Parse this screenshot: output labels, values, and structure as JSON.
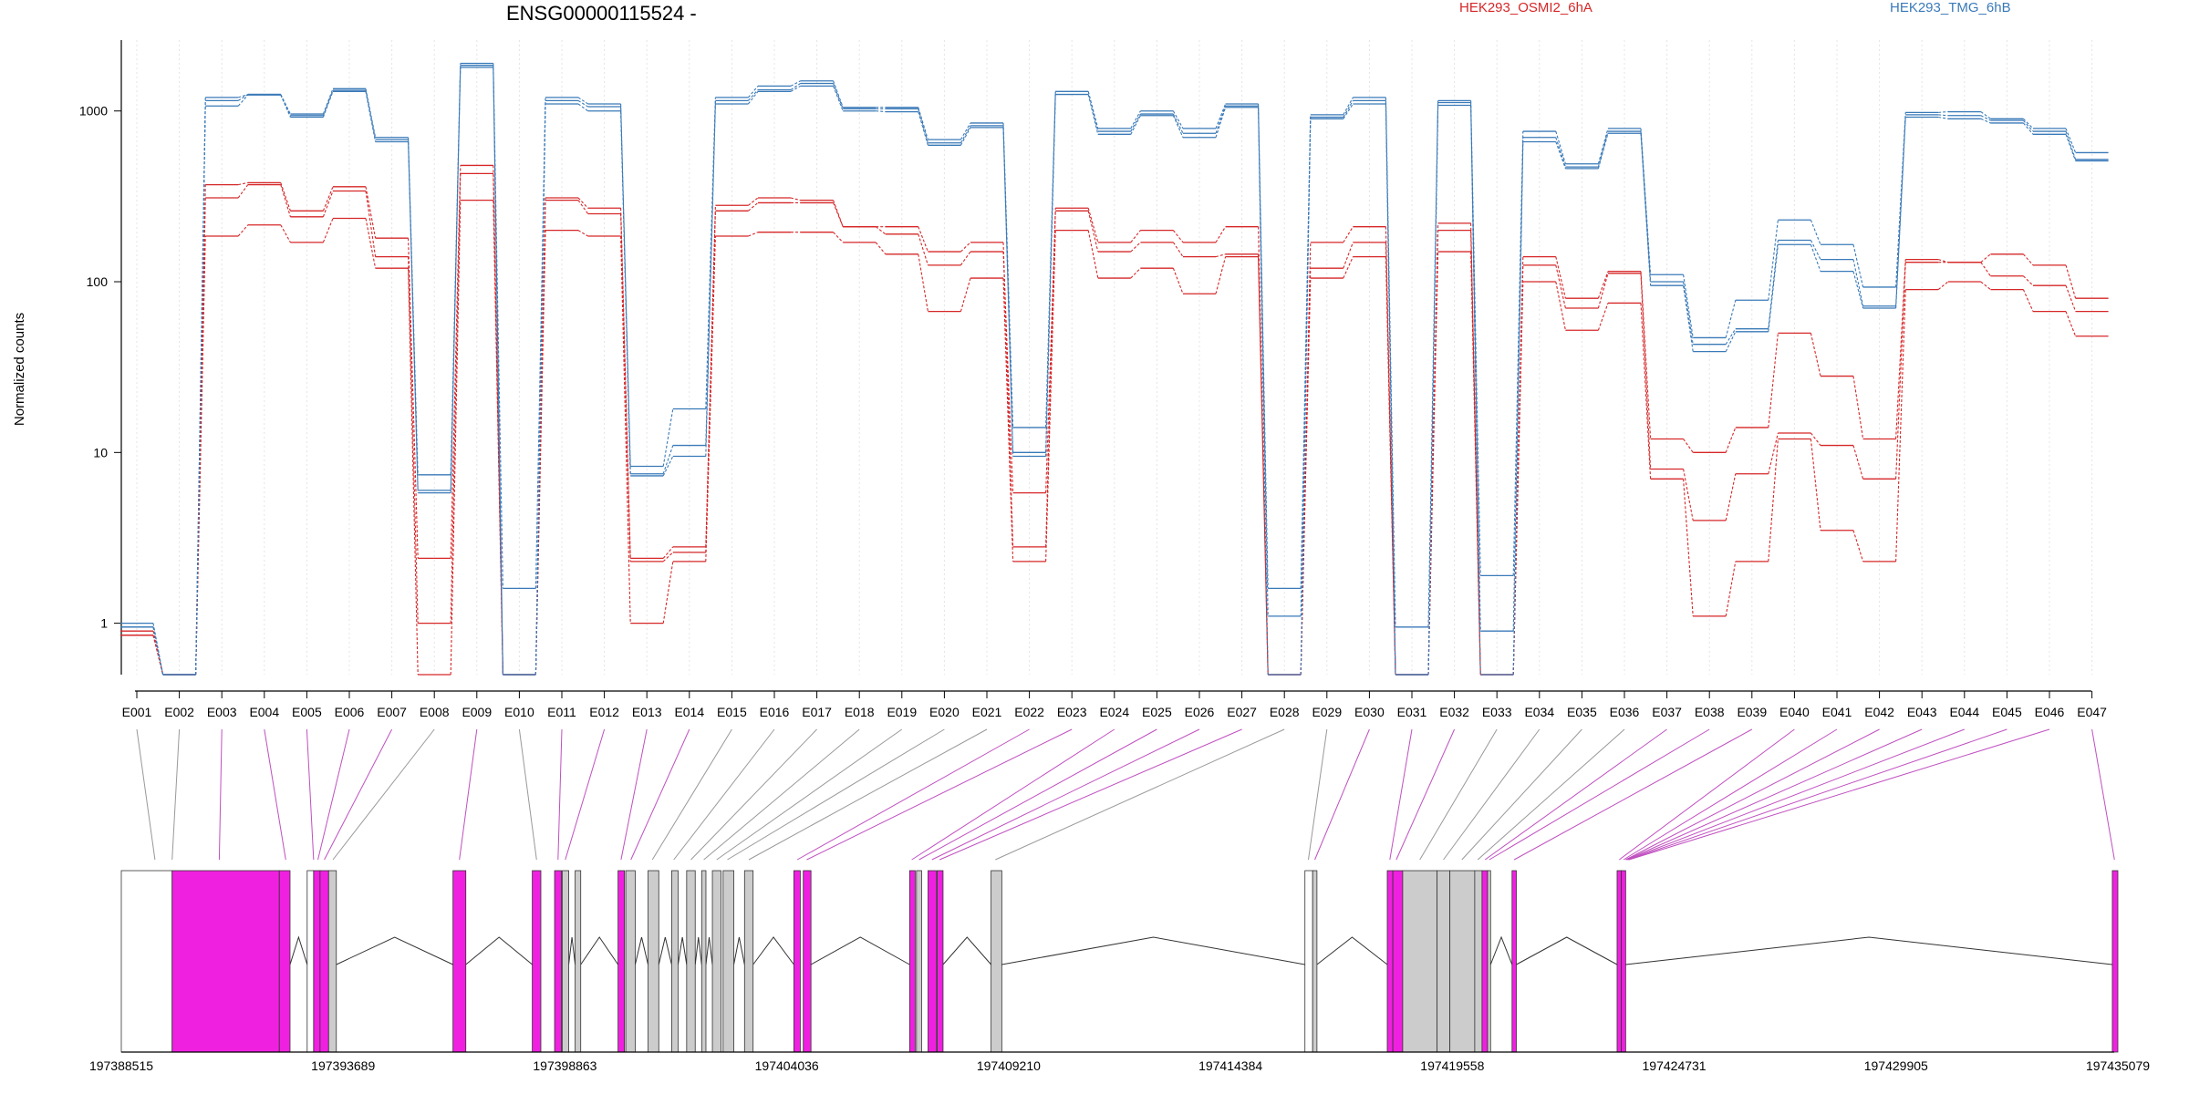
{
  "chart_data": {
    "type": "line",
    "title": "ENSG00000115524 -",
    "ylabel": "Normalized counts",
    "yscale": "log",
    "ylim": [
      0.5,
      2600
    ],
    "yticks": [
      1,
      10,
      100,
      1000
    ],
    "ytick_labels": [
      "1",
      "10",
      "100",
      "1000"
    ],
    "grid": "vertical dotted per exon",
    "legend": [
      {
        "name": "HEK293_OSMI2_6hA",
        "color": "#d62728",
        "position": "top-center-right"
      },
      {
        "name": "HEK293_TMG_6hB",
        "color": "#3a7ab8",
        "position": "top-right"
      }
    ],
    "categories": [
      "E001",
      "E002",
      "E003",
      "E004",
      "E005",
      "E006",
      "E007",
      "E008",
      "E009",
      "E010",
      "E011",
      "E012",
      "E013",
      "E014",
      "E015",
      "E016",
      "E017",
      "E018",
      "E019",
      "E020",
      "E021",
      "E022",
      "E023",
      "E024",
      "E025",
      "E026",
      "E027",
      "E028",
      "E029",
      "E030",
      "E031",
      "E032",
      "E033",
      "E034",
      "E035",
      "E036",
      "E037",
      "E038",
      "E039",
      "E040",
      "E041",
      "E042",
      "E043",
      "E044",
      "E045",
      "E046",
      "E047"
    ],
    "series": [
      {
        "color": "#d62728",
        "values": [
          0.9,
          0.5,
          370,
          380,
          260,
          360,
          180,
          2.4,
          480,
          0.5,
          310,
          270,
          2.4,
          2.8,
          280,
          310,
          300,
          210,
          210,
          150,
          170,
          2.8,
          270,
          170,
          200,
          170,
          210,
          0.5,
          170,
          210,
          0.5,
          220,
          0.5,
          140,
          80,
          115,
          12,
          10,
          14,
          50,
          28,
          12,
          135,
          130,
          145,
          125,
          80
        ]
      },
      {
        "color": "#d62728",
        "values": [
          0.85,
          0.5,
          310,
          370,
          240,
          340,
          140,
          1.0,
          430,
          0.5,
          300,
          250,
          2.3,
          2.6,
          260,
          290,
          290,
          210,
          190,
          125,
          150,
          5.8,
          260,
          150,
          170,
          140,
          145,
          0.5,
          120,
          170,
          0.5,
          200,
          0.5,
          125,
          70,
          112,
          8.0,
          4.0,
          7.5,
          13,
          11,
          7.0,
          130,
          130,
          108,
          95,
          67
        ]
      },
      {
        "color": "#d62728",
        "values": [
          0.85,
          0.5,
          185,
          215,
          170,
          235,
          120,
          0.5,
          300,
          0.5,
          200,
          185,
          1.0,
          2.3,
          185,
          195,
          195,
          170,
          145,
          67,
          105,
          2.3,
          200,
          105,
          120,
          85,
          140,
          0.5,
          105,
          140,
          0.5,
          150,
          0.5,
          100,
          52,
          75,
          7.0,
          1.1,
          2.3,
          12,
          3.5,
          2.3,
          90,
          100,
          90,
          67,
          48
        ]
      },
      {
        "color": "#3a7ab8",
        "values": [
          1.0,
          0.5,
          1200,
          1250,
          960,
          1350,
          700,
          7.4,
          1900,
          1.6,
          1200,
          1100,
          8.3,
          18,
          1200,
          1400,
          1500,
          1050,
          1050,
          680,
          850,
          14,
          1300,
          790,
          1000,
          790,
          1100,
          1.6,
          950,
          1200,
          0.95,
          1150,
          1.9,
          760,
          490,
          790,
          110,
          47,
          78,
          230,
          165,
          93,
          980,
          990,
          900,
          790,
          570
        ]
      },
      {
        "color": "#3a7ab8",
        "values": [
          0.95,
          0.5,
          1150,
          1250,
          940,
          1320,
          680,
          6.0,
          1850,
          0.5,
          1150,
          1060,
          7.5,
          11,
          1150,
          1330,
          1450,
          1030,
          1030,
          650,
          820,
          10,
          1300,
          760,
          960,
          740,
          1070,
          1.1,
          920,
          1150,
          0.5,
          1120,
          0.9,
          700,
          470,
          760,
          100,
          43,
          53,
          175,
          135,
          72,
          950,
          940,
          880,
          760,
          520
        ]
      },
      {
        "color": "#3a7ab8",
        "values": [
          0.95,
          0.5,
          1070,
          1240,
          920,
          1300,
          660,
          5.8,
          1800,
          0.5,
          1100,
          1000,
          7.3,
          9.5,
          1100,
          1300,
          1400,
          1000,
          990,
          630,
          800,
          9.5,
          1250,
          730,
          940,
          700,
          1050,
          0.5,
          900,
          1100,
          0.5,
          1080,
          0.5,
          660,
          460,
          740,
          95,
          39,
          51,
          165,
          115,
          70,
          920,
          900,
          850,
          730,
          510
        ]
      }
    ],
    "gene_model": {
      "position_labels": [
        "197388515",
        "197393689",
        "197398863",
        "197404036",
        "197409210",
        "197414384",
        "197419558",
        "197424731",
        "197429905",
        "197435079"
      ],
      "exon_colors": {
        "differential": "#f020e0",
        "other": "#cccccc",
        "untested": "#ffffff"
      }
    }
  }
}
